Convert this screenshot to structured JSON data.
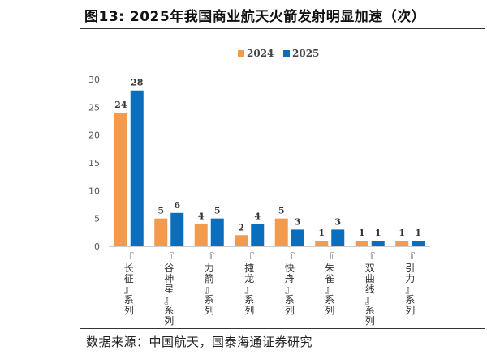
{
  "figure": {
    "title": "图13:  2025年我国商业航天火箭发射明显加速（次）",
    "source": "数据来源：中国航天，国泰海通证券研究"
  },
  "chart_data": {
    "type": "bar",
    "categories": [
      "『长征』系列",
      "『谷神星』系列",
      "『力箭』系列",
      "『捷龙』系列",
      "『快舟』系列",
      "『朱雀』系列",
      "『双曲线』系列",
      "『引力』系列"
    ],
    "series": [
      {
        "name": "2024",
        "color": "#F39A4D",
        "values": [
          24,
          5,
          4,
          2,
          5,
          1,
          1,
          1
        ]
      },
      {
        "name": "2025",
        "color": "#0A6EBD",
        "values": [
          28,
          6,
          5,
          4,
          3,
          3,
          1,
          1
        ]
      }
    ],
    "ylim": [
      0,
      30
    ],
    "yticks": [
      0,
      5,
      10,
      15,
      20,
      25,
      30
    ],
    "legend": "top-center",
    "grid": false,
    "data_labels": true
  }
}
